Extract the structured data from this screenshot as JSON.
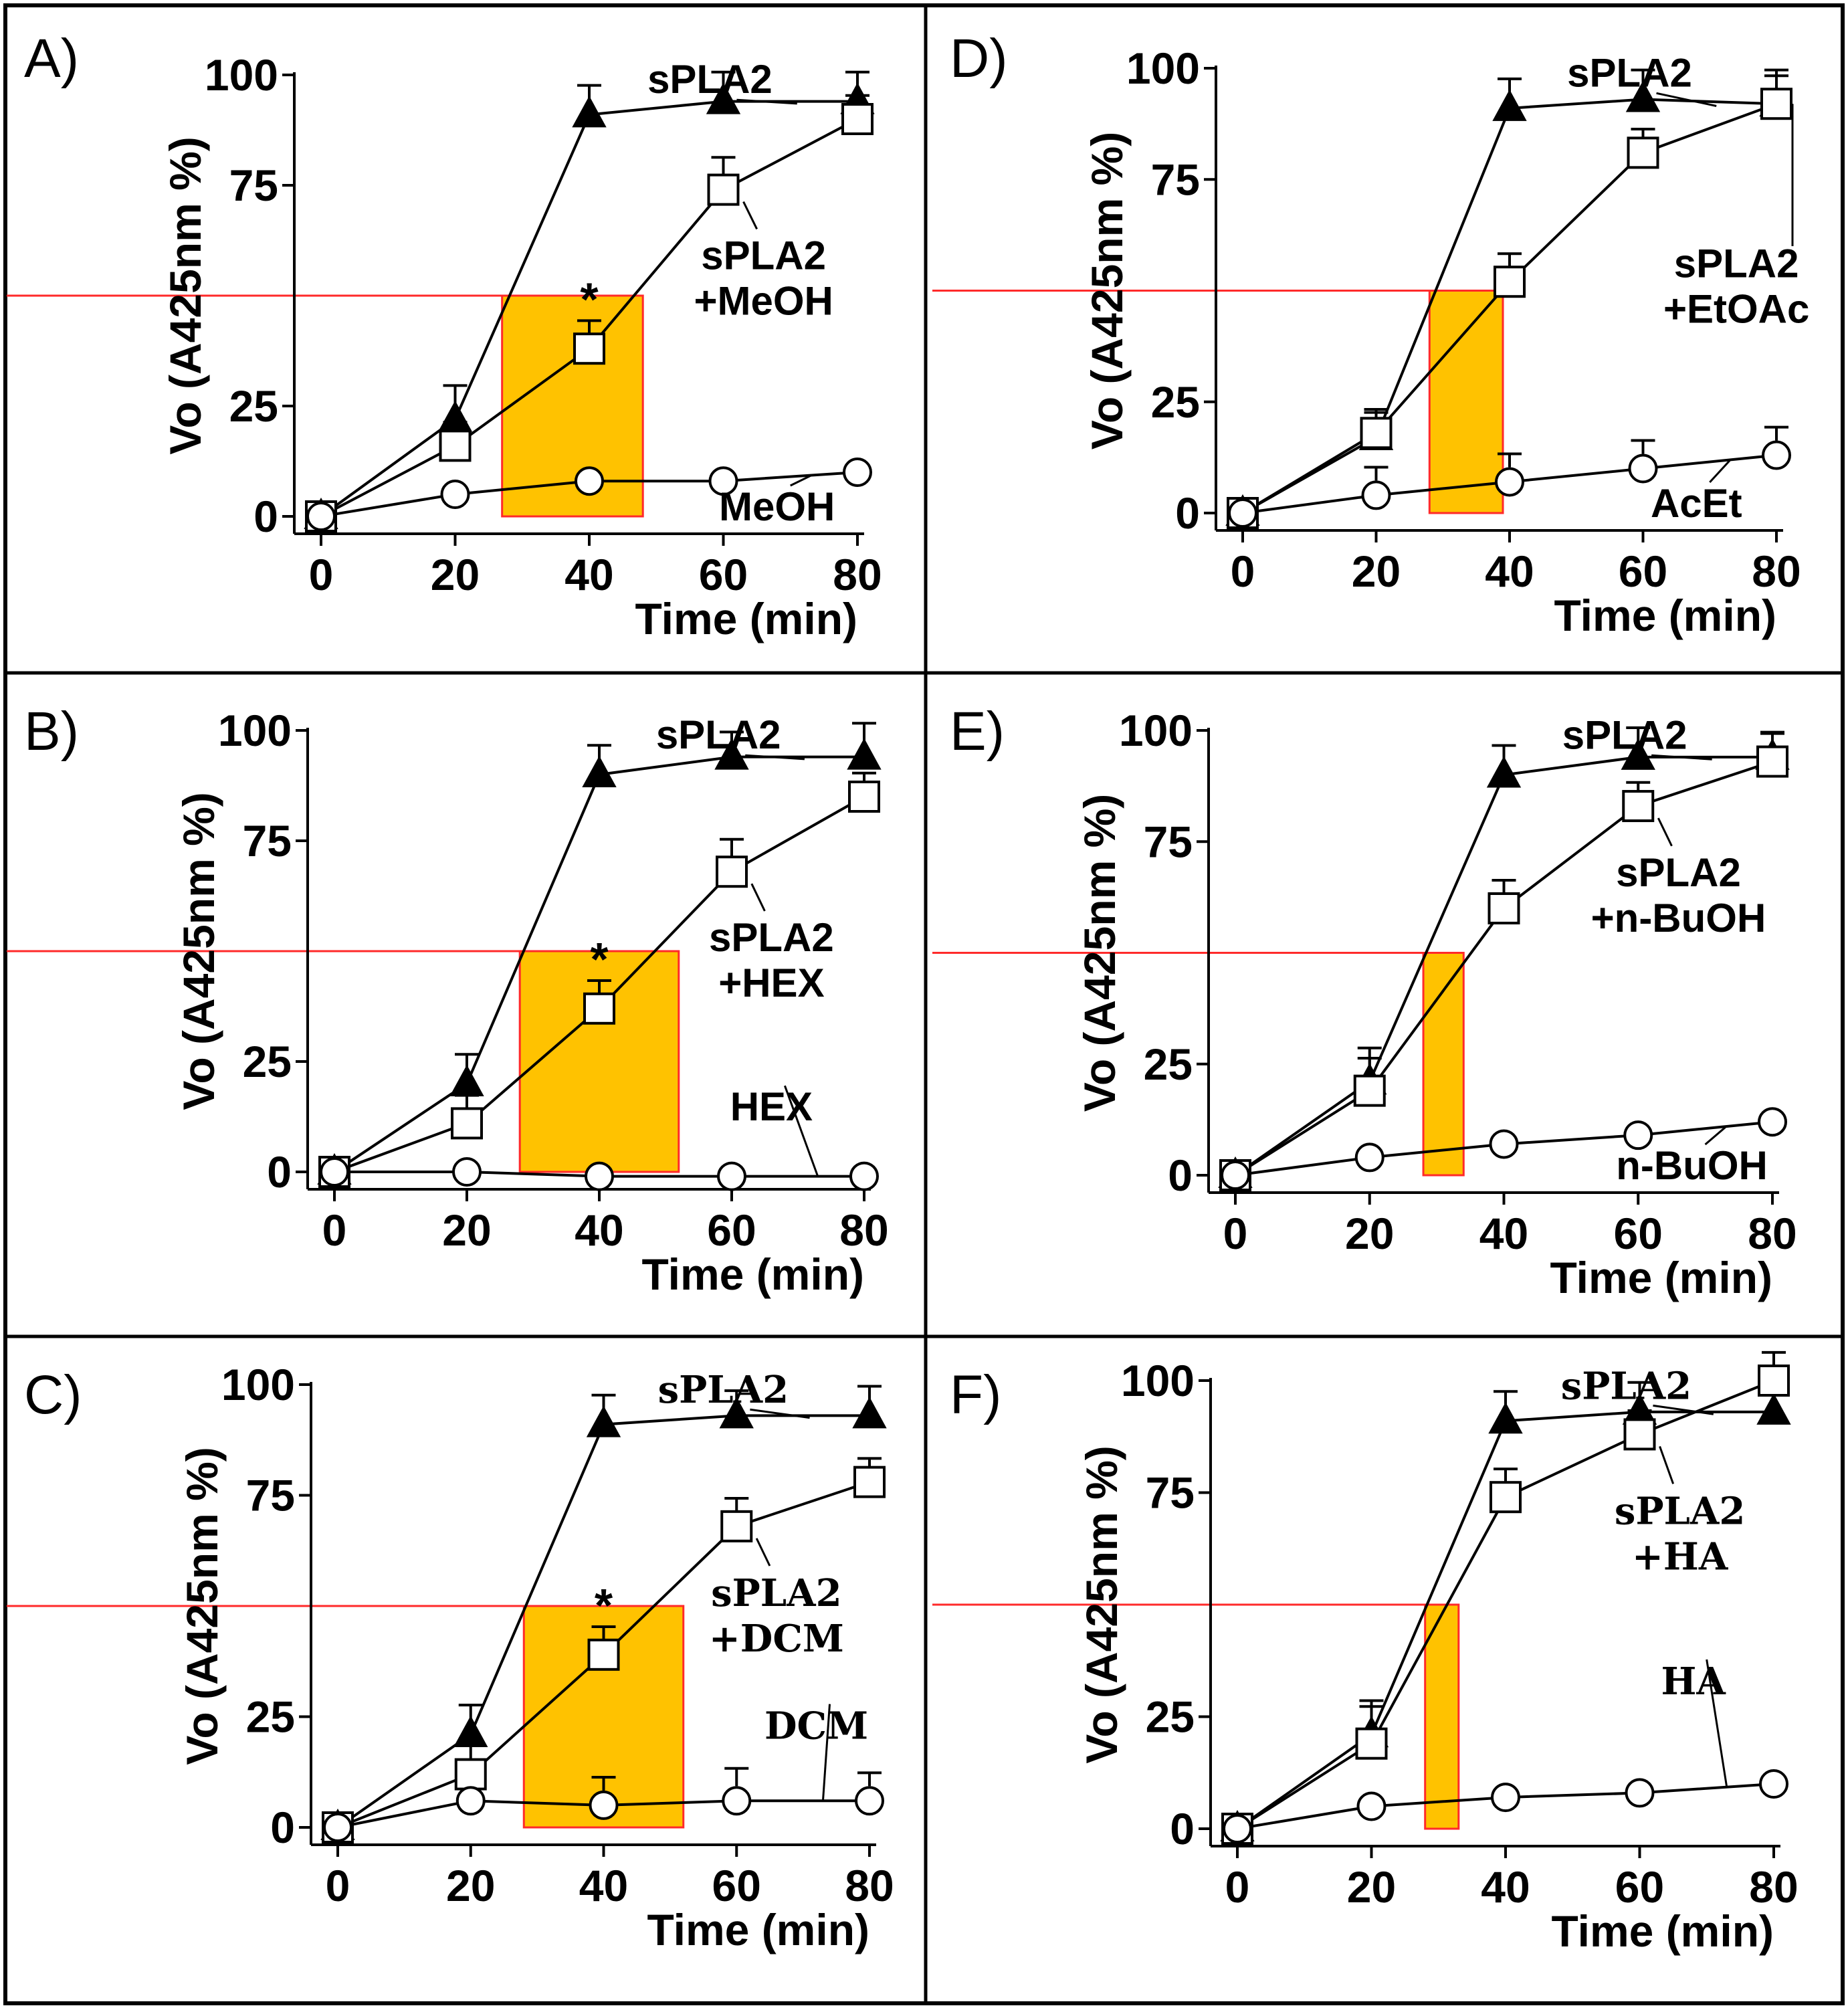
{
  "figure": {
    "frame_color": "#000000",
    "highlight_color": "#ff2a2a",
    "band_color": "#ffc200"
  },
  "chart_data": [
    {
      "panel": "A)",
      "type": "line",
      "x": [
        0,
        20,
        40,
        60,
        80
      ],
      "xlabel": "Time (min)",
      "ylabel": "Vo (A425nm %)",
      "xticks": [
        "0",
        "20",
        "40",
        "60",
        "80"
      ],
      "yticks": [
        "0",
        "25",
        "75",
        "100"
      ],
      "ylim": [
        0,
        100
      ],
      "half_level": 50,
      "band": [
        27,
        48
      ],
      "asterisk_at": 40,
      "serif_labels": false,
      "series": [
        {
          "name": "sPLA2",
          "marker": "triangle-filled",
          "values": [
            0,
            22,
            91,
            94,
            94
          ],
          "err": [
            0,
            4,
            3,
            3,
            3
          ]
        },
        {
          "name": "sPLA2 +MeOH",
          "marker": "square-open",
          "values": [
            0,
            16,
            38,
            74,
            90
          ],
          "err": [
            0,
            2,
            3,
            4,
            2
          ]
        },
        {
          "name": "MeOH",
          "marker": "circle-open",
          "values": [
            0,
            5,
            8,
            8,
            10
          ],
          "err": [
            0,
            0,
            0,
            0,
            0
          ]
        }
      ],
      "labels": [
        {
          "series": "sPLA2",
          "lines": [
            "sPLA2"
          ]
        },
        {
          "series": "sPLA2 +MeOH",
          "lines": [
            "sPLA2",
            "+MeOH"
          ]
        },
        {
          "series": "MeOH",
          "lines": [
            "MeOH"
          ]
        }
      ]
    },
    {
      "panel": "B)",
      "type": "line",
      "x": [
        0,
        20,
        40,
        60,
        80
      ],
      "xlabel": "Time (min)",
      "ylabel": "Vo (A425nm %)",
      "xticks": [
        "0",
        "20",
        "40",
        "60",
        "80"
      ],
      "yticks": [
        "0",
        "25",
        "75",
        "100"
      ],
      "ylim": [
        0,
        100
      ],
      "half_level": 50,
      "band": [
        28,
        52
      ],
      "asterisk_at": 40,
      "serif_labels": false,
      "series": [
        {
          "name": "sPLA2",
          "marker": "triangle-filled",
          "values": [
            0,
            20,
            90,
            94,
            94
          ],
          "err": [
            0,
            3,
            3,
            2,
            4
          ]
        },
        {
          "name": "sPLA2 +HEX",
          "marker": "square-open",
          "values": [
            0,
            11,
            37,
            68,
            85
          ],
          "err": [
            0,
            3,
            3,
            4,
            2
          ]
        },
        {
          "name": "HEX",
          "marker": "circle-open",
          "values": [
            0,
            0,
            -1,
            -1,
            -1
          ],
          "err": [
            0,
            0,
            0,
            0,
            0
          ]
        }
      ],
      "labels": [
        {
          "series": "sPLA2",
          "lines": [
            "sPLA2"
          ]
        },
        {
          "series": "sPLA2 +HEX",
          "lines": [
            "sPLA2",
            "+HEX"
          ]
        },
        {
          "series": "HEX",
          "lines": [
            "HEX"
          ]
        }
      ]
    },
    {
      "panel": "C)",
      "type": "line",
      "x": [
        0,
        20,
        40,
        60,
        80
      ],
      "xlabel": "Time (min)",
      "ylabel": "Vo (A425nm %)",
      "xticks": [
        "0",
        "20",
        "40",
        "60",
        "80"
      ],
      "yticks": [
        "0",
        "25",
        "75",
        "100"
      ],
      "ylim": [
        0,
        100
      ],
      "half_level": 50,
      "band": [
        28,
        52
      ],
      "asterisk_at": 40,
      "serif_labels": true,
      "series": [
        {
          "name": "sPLA2",
          "marker": "triangle-filled",
          "values": [
            0,
            21,
            91,
            93,
            93
          ],
          "err": [
            0,
            3,
            3,
            2,
            3
          ]
        },
        {
          "name": "sPLA2 +DCM",
          "marker": "square-open",
          "values": [
            0,
            12,
            39,
            68,
            78
          ],
          "err": [
            0,
            4,
            3,
            3,
            2
          ]
        },
        {
          "name": "DCM",
          "marker": "circle-open",
          "values": [
            0,
            6,
            5,
            6,
            6
          ],
          "err": [
            0,
            0,
            3,
            4,
            3
          ]
        }
      ],
      "labels": [
        {
          "series": "sPLA2",
          "lines": [
            "sPLA2"
          ]
        },
        {
          "series": "sPLA2 +DCM",
          "lines": [
            "sPLA2",
            "+DCM"
          ]
        },
        {
          "series": "DCM",
          "lines": [
            "DCM"
          ]
        }
      ]
    },
    {
      "panel": "D)",
      "type": "line",
      "x": [
        0,
        20,
        40,
        60,
        80
      ],
      "xlabel": "Time (min)",
      "ylabel": "Vo (A425nm %)",
      "xticks": [
        "0",
        "20",
        "40",
        "60",
        "80"
      ],
      "yticks": [
        "0",
        "25",
        "75",
        "100"
      ],
      "ylim": [
        0,
        100
      ],
      "half_level": 50,
      "band": [
        28,
        39
      ],
      "asterisk_at": null,
      "serif_labels": false,
      "series": [
        {
          "name": "sPLA2",
          "marker": "triangle-filled",
          "values": [
            0,
            17,
            91,
            93,
            92
          ],
          "err": [
            0,
            2,
            3,
            3,
            4
          ]
        },
        {
          "name": "sPLA2 +EtOAc",
          "marker": "square-open",
          "values": [
            0,
            18,
            52,
            81,
            92
          ],
          "err": [
            0,
            2,
            3,
            2,
            3
          ]
        },
        {
          "name": "AcEt",
          "marker": "circle-open",
          "values": [
            0,
            4,
            7,
            10,
            13
          ],
          "err": [
            0,
            3,
            3,
            3,
            3
          ]
        }
      ],
      "labels": [
        {
          "series": "sPLA2",
          "lines": [
            "sPLA2"
          ]
        },
        {
          "series": "sPLA2 +EtOAc",
          "lines": [
            "sPLA2",
            "+EtOAc"
          ]
        },
        {
          "series": "AcEt",
          "lines": [
            "AcEt"
          ]
        }
      ]
    },
    {
      "panel": "E)",
      "type": "line",
      "x": [
        0,
        20,
        40,
        60,
        80
      ],
      "xlabel": "Time (min)",
      "ylabel": "Vo (A425nm %)",
      "xticks": [
        "0",
        "20",
        "40",
        "60",
        "80"
      ],
      "yticks": [
        "0",
        "25",
        "75",
        "100"
      ],
      "ylim": [
        0,
        100
      ],
      "half_level": 50,
      "band": [
        28,
        34
      ],
      "asterisk_at": null,
      "serif_labels": false,
      "series": [
        {
          "name": "sPLA2",
          "marker": "triangle-filled",
          "values": [
            0,
            21,
            90,
            94,
            94
          ],
          "err": [
            0,
            4,
            3,
            3,
            2
          ]
        },
        {
          "name": "sPLA2 +n-BuOH",
          "marker": "square-open",
          "values": [
            0,
            19,
            60,
            83,
            93
          ],
          "err": [
            0,
            4,
            3,
            2,
            3
          ]
        },
        {
          "name": "n-BuOH",
          "marker": "circle-open",
          "values": [
            0,
            4,
            7,
            9,
            12
          ],
          "err": [
            0,
            0,
            0,
            0,
            0
          ]
        }
      ],
      "labels": [
        {
          "series": "sPLA2",
          "lines": [
            "sPLA2"
          ]
        },
        {
          "series": "sPLA2 +n-BuOH",
          "lines": [
            "sPLA2",
            "+n-BuOH"
          ]
        },
        {
          "series": "n-BuOH",
          "lines": [
            "n-BuOH"
          ]
        }
      ]
    },
    {
      "panel": "F)",
      "type": "line",
      "x": [
        0,
        20,
        40,
        60,
        80
      ],
      "xlabel": "Time (min)",
      "ylabel": "Vo (A425nm %)",
      "xticks": [
        "0",
        "20",
        "40",
        "60",
        "80"
      ],
      "yticks": [
        "0",
        "25",
        "75",
        "100"
      ],
      "ylim": [
        0,
        100
      ],
      "half_level": 50,
      "band": [
        28,
        33
      ],
      "asterisk_at": null,
      "serif_labels": true,
      "series": [
        {
          "name": "sPLA2",
          "marker": "triangle-filled",
          "values": [
            0,
            21,
            91,
            93,
            93
          ],
          "err": [
            0,
            4,
            3,
            3,
            2
          ]
        },
        {
          "name": "sPLA2 +HA",
          "marker": "square-open",
          "values": [
            0,
            19,
            74,
            88,
            100
          ],
          "err": [
            0,
            5,
            3,
            2,
            3
          ]
        },
        {
          "name": "HA",
          "marker": "circle-open",
          "values": [
            0,
            5,
            7,
            8,
            10
          ],
          "err": [
            0,
            0,
            0,
            0,
            0
          ]
        }
      ],
      "labels": [
        {
          "series": "sPLA2",
          "lines": [
            "sPLA2"
          ]
        },
        {
          "series": "sPLA2 +HA",
          "lines": [
            "sPLA2",
            "+HA"
          ]
        },
        {
          "series": "HA",
          "lines": [
            "HA"
          ]
        }
      ]
    }
  ]
}
